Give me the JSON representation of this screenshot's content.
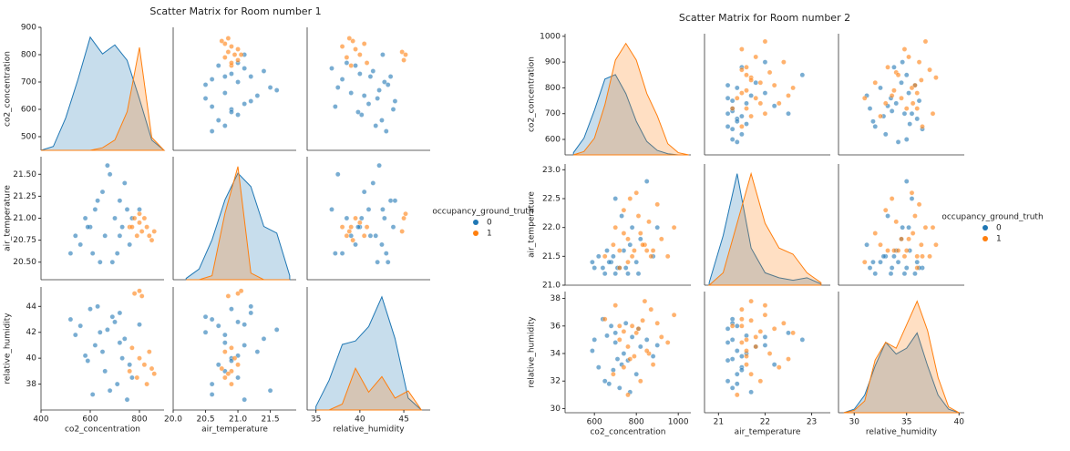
{
  "chart_data": [
    {
      "type": "scatter_matrix",
      "title": "Scatter Matrix for Room number 1",
      "legend_title": "occupancy_ground_truth",
      "variables": [
        {
          "name": "co2_concentration",
          "xlim": [
            400,
            900
          ],
          "xticks": [
            400,
            600,
            800
          ],
          "ylim": [
            450,
            900
          ],
          "yticks": [
            500,
            600,
            700,
            800,
            900
          ],
          "kde_x": [
            400,
            450,
            500,
            550,
            600,
            650,
            700,
            750,
            800,
            850,
            900
          ]
        },
        {
          "name": "air_temperature",
          "xlim": [
            20.0,
            21.9
          ],
          "xticks": [
            {
              "value": 20,
              "label": "20.0"
            },
            20.5,
            {
              "value": 21,
              "label": "21.0"
            },
            21.5
          ],
          "ylim": [
            20.3,
            21.7
          ],
          "yticks": [
            {
              "value": 20.5,
              "label": "20.50"
            },
            {
              "value": 20.75,
              "label": "20.75"
            },
            {
              "value": 21,
              "label": "21.00"
            },
            {
              "value": 21.25,
              "label": "21.25"
            },
            {
              "value": 21.5,
              "label": "21.50"
            }
          ],
          "kde_x": [
            20.2,
            20.4,
            20.6,
            20.8,
            21.0,
            21.2,
            21.4,
            21.6,
            21.8
          ]
        },
        {
          "name": "relative_humidity",
          "xlim": [
            34,
            48
          ],
          "xticks": [
            35,
            40,
            45
          ],
          "ylim": [
            36,
            45.5
          ],
          "yticks": [
            38,
            40,
            42,
            44
          ],
          "kde_x": [
            35,
            36.5,
            38,
            39.5,
            41,
            42.5,
            44,
            45.5,
            47
          ]
        }
      ],
      "series": [
        {
          "name": "0",
          "color": "#1f77b4",
          "values": [
            [
              520,
              560,
              600,
              620,
              640,
              650,
              660,
              680,
              700,
              710,
              720,
              730,
              740,
              750,
              760,
              540,
              580,
              610,
              670,
              690,
              770,
              630,
              590,
              720,
              800
            ],
            [
              20.6,
              20.7,
              20.9,
              21.1,
              20.5,
              21.3,
              20.8,
              21.5,
              21.0,
              20.6,
              21.2,
              20.9,
              21.4,
              21.1,
              20.7,
              20.8,
              21.0,
              20.6,
              21.6,
              20.5,
              21.0,
              21.2,
              20.9,
              20.8,
              21.1
            ],
            [
              43.0,
              42.5,
              43.8,
              41.0,
              42.0,
              40.5,
              39.0,
              37.5,
              42.8,
              38.0,
              43.5,
              40.0,
              41.5,
              36.8,
              39.5,
              41.8,
              40.2,
              37.2,
              42.2,
              43.2,
              38.5,
              44.0,
              39.8,
              41.2,
              42.6
            ]
          ],
          "kde": [
            [
              0,
              0.3,
              2.5,
              5.5,
              8.8,
              7.5,
              8.2,
              7.0,
              4.0,
              0.8,
              0
            ],
            [
              0.1,
              0.8,
              3,
              6,
              8,
              7,
              4,
              3.5,
              0.3
            ],
            [
              0.3,
              2.5,
              5.5,
              5.8,
              7,
              9.5,
              6,
              1,
              0
            ]
          ]
        },
        {
          "name": "1",
          "color": "#ff7f0e",
          "values": [
            [
              760,
              780,
              790,
              800,
              810,
              820,
              830,
              840,
              850,
              800,
              770,
              860
            ],
            [
              20.9,
              21.0,
              20.8,
              20.95,
              20.85,
              21.0,
              20.9,
              20.8,
              20.75,
              21.05,
              20.9,
              20.85
            ],
            [
              39.0,
              45.0,
              38.5,
              40.0,
              44.8,
              39.5,
              38.0,
              40.5,
              39.2,
              45.2,
              40.8,
              38.8
            ]
          ],
          "kde": [
            [
              0,
              0,
              0,
              0,
              0,
              0.2,
              0.8,
              3.0,
              8.0,
              1.0,
              0
            ],
            [
              0,
              0,
              0.3,
              5,
              8.5,
              0.5,
              0,
              0,
              0
            ],
            [
              0,
              0,
              0.5,
              3.5,
              1.5,
              2.8,
              1.0,
              1.6,
              0
            ]
          ]
        }
      ]
    },
    {
      "type": "scatter_matrix",
      "title": "Scatter Matrix for Room number 2",
      "legend_title": "occupancy_ground_truth",
      "variables": [
        {
          "name": "co2_concentration",
          "xlim": [
            460,
            1060
          ],
          "xticks": [
            600,
            800,
            1000
          ],
          "ylim": [
            540,
            1010
          ],
          "yticks": [
            600,
            700,
            800,
            900,
            1000
          ],
          "kde_x": [
            500,
            550,
            600,
            650,
            700,
            750,
            800,
            850,
            900,
            950,
            1000,
            1050
          ]
        },
        {
          "name": "air_temperature",
          "xlim": [
            20.7,
            23.4
          ],
          "xticks": [
            21,
            22,
            23
          ],
          "ylim": [
            21.0,
            23.1
          ],
          "yticks": [
            {
              "value": 21,
              "label": "21.0"
            },
            21.5,
            {
              "value": 22,
              "label": "22.0"
            },
            22.5,
            {
              "value": 23,
              "label": "23.0"
            }
          ],
          "kde_x": [
            20.8,
            21.1,
            21.4,
            21.7,
            22.0,
            22.3,
            22.6,
            22.9,
            23.2
          ]
        },
        {
          "name": "relative_humidity",
          "xlim": [
            28.5,
            40.5
          ],
          "xticks": [
            30,
            35,
            40
          ],
          "ylim": [
            29.7,
            38.5
          ],
          "yticks": [
            30,
            32,
            34,
            36,
            38
          ],
          "kde_x": [
            29,
            30,
            31,
            32,
            33,
            34,
            35,
            36,
            37,
            38,
            39,
            40
          ]
        }
      ],
      "series": [
        {
          "name": "0",
          "color": "#1f77b4",
          "values": [
            [
              600,
              620,
              650,
              680,
              700,
              720,
              740,
              760,
              780,
              800,
              820,
              850,
              880,
              640,
              670,
              700,
              730,
              750,
              690,
              810,
              590,
              660,
              710,
              770,
              900
            ],
            [
              21.3,
              21.5,
              21.2,
              21.4,
              22.5,
              21.3,
              21.6,
              21.2,
              22.0,
              21.4,
              21.8,
              22.8,
              21.5,
              21.3,
              21.4,
              21.2,
              22.2,
              21.3,
              21.5,
              21.2,
              21.4,
              21.6,
              21.3,
              21.7,
              22.0
            ],
            [
              35.0,
              33.0,
              32.0,
              36.0,
              35.5,
              31.5,
              34.0,
              33.5,
              35.2,
              32.5,
              34.5,
              35.0,
              33.8,
              36.5,
              31.8,
              34.8,
              33.2,
              36.2,
              32.8,
              35.8,
              34.2,
              35.3,
              33.6,
              31.2,
              34.6
            ]
          ],
          "kde": [
            [
              0.2,
              1.5,
              4,
              6.8,
              7.2,
              5.5,
              3,
              1.2,
              0.4,
              0.1,
              0,
              0
            ],
            [
              0.2,
              4,
              9,
              3,
              1,
              0.6,
              0.4,
              0.6,
              0.1
            ],
            [
              0,
              0.3,
              1.5,
              4,
              6,
              5,
              5.5,
              6.8,
              4,
              1.5,
              0.3,
              0
            ]
          ]
        },
        {
          "name": "1",
          "color": "#ff7f0e",
          "values": [
            [
              650,
              700,
              720,
              740,
              760,
              780,
              800,
              820,
              840,
              860,
              880,
              900,
              920,
              950,
              980,
              760,
              790,
              810,
              830,
              870,
              690,
              740,
              850,
              770,
              720
            ],
            [
              21.5,
              22.0,
              21.6,
              22.3,
              21.8,
              21.5,
              22.6,
              21.9,
              21.7,
              22.1,
              21.6,
              22.4,
              21.8,
              21.5,
              22.0,
              21.4,
              21.6,
              22.2,
              21.7,
              21.5,
              21.7,
              21.9,
              21.6,
              22.5,
              21.3
            ],
            [
              36.5,
              37.5,
              35.0,
              33.0,
              34.5,
              36.0,
              35.5,
              32.0,
              37.8,
              34.0,
              33.2,
              36.2,
              35.2,
              34.8,
              36.8,
              31.0,
              33.8,
              35.8,
              36.4,
              37.2,
              32.5,
              35.6,
              34.2,
              33.6,
              36.0
            ]
          ],
          "kde": [
            [
              0,
              0.3,
              1.5,
              4.5,
              8.5,
              10,
              8.5,
              5.5,
              3.5,
              1.0,
              0.2,
              0
            ],
            [
              0,
              1,
              5,
              9,
              5,
              3,
              2.5,
              1,
              0.2
            ],
            [
              0,
              0.2,
              1,
              4.5,
              6,
              5.5,
              7.5,
              9.5,
              7,
              3,
              0.5,
              0
            ]
          ]
        }
      ]
    }
  ]
}
